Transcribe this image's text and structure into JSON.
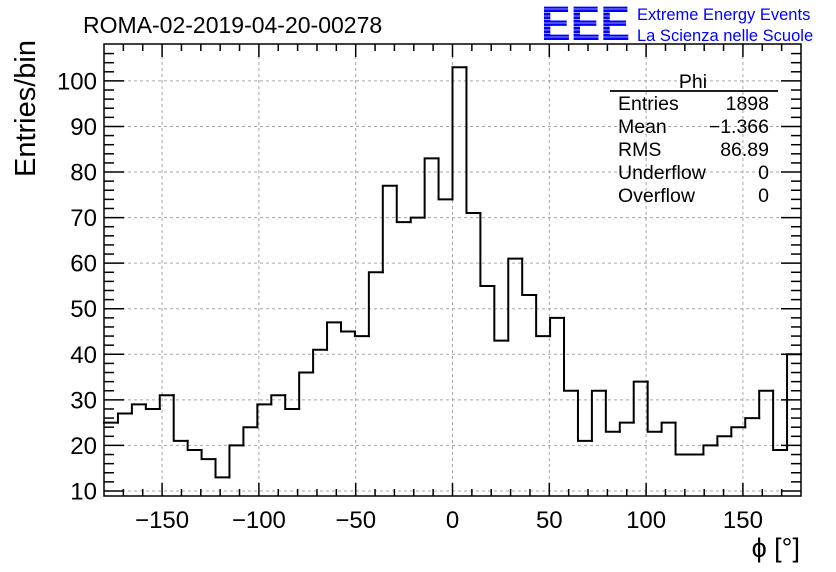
{
  "logo": {
    "mark": "EEE",
    "line1": "Extreme Energy Events",
    "line2": "La Scienza nelle Scuole",
    "color": "#0000ff"
  },
  "chart_data": {
    "type": "bar",
    "title": "ROMA-02-2019-04-20-00278",
    "xlabel": "ϕ [°]",
    "ylabel": "Entries/bin",
    "xlim": [
      -180,
      180
    ],
    "ylim": [
      8.9,
      108.1
    ],
    "bin_start": -180,
    "bin_width": 7.2,
    "values": [
      25,
      27,
      29,
      28,
      31,
      21,
      19,
      17,
      13,
      20,
      24,
      29,
      31,
      28,
      36,
      41,
      47,
      45,
      44,
      58,
      77,
      69,
      70,
      83,
      74,
      103,
      71,
      55,
      43,
      61,
      53,
      44,
      48,
      32,
      21,
      32,
      23,
      25,
      34,
      23,
      25,
      18,
      18,
      20,
      22,
      24,
      26,
      32,
      19,
      40
    ],
    "x_ticks": [
      -150,
      -100,
      -50,
      0,
      50,
      100,
      150
    ],
    "x_tick_labels": [
      "−150",
      "−100",
      "−50",
      "0",
      "50",
      "100",
      "150"
    ],
    "x_minor_step": 10,
    "y_ticks": [
      10,
      20,
      30,
      40,
      50,
      60,
      70,
      80,
      90,
      100
    ],
    "y_tick_labels": [
      "10",
      "20",
      "30",
      "40",
      "50",
      "60",
      "70",
      "80",
      "90",
      "100"
    ],
    "y_minor_step": 2,
    "grid": true,
    "stats": {
      "name": "Phi",
      "rows": [
        {
          "label": "Entries",
          "value": "1898"
        },
        {
          "label": "Mean",
          "value": "−1.366"
        },
        {
          "label": "RMS",
          "value": "86.89"
        },
        {
          "label": "Underflow",
          "value": "0"
        },
        {
          "label": "Overflow",
          "value": "0"
        }
      ]
    },
    "line_color": "#000000",
    "grid_color": "#a6a6a6"
  }
}
